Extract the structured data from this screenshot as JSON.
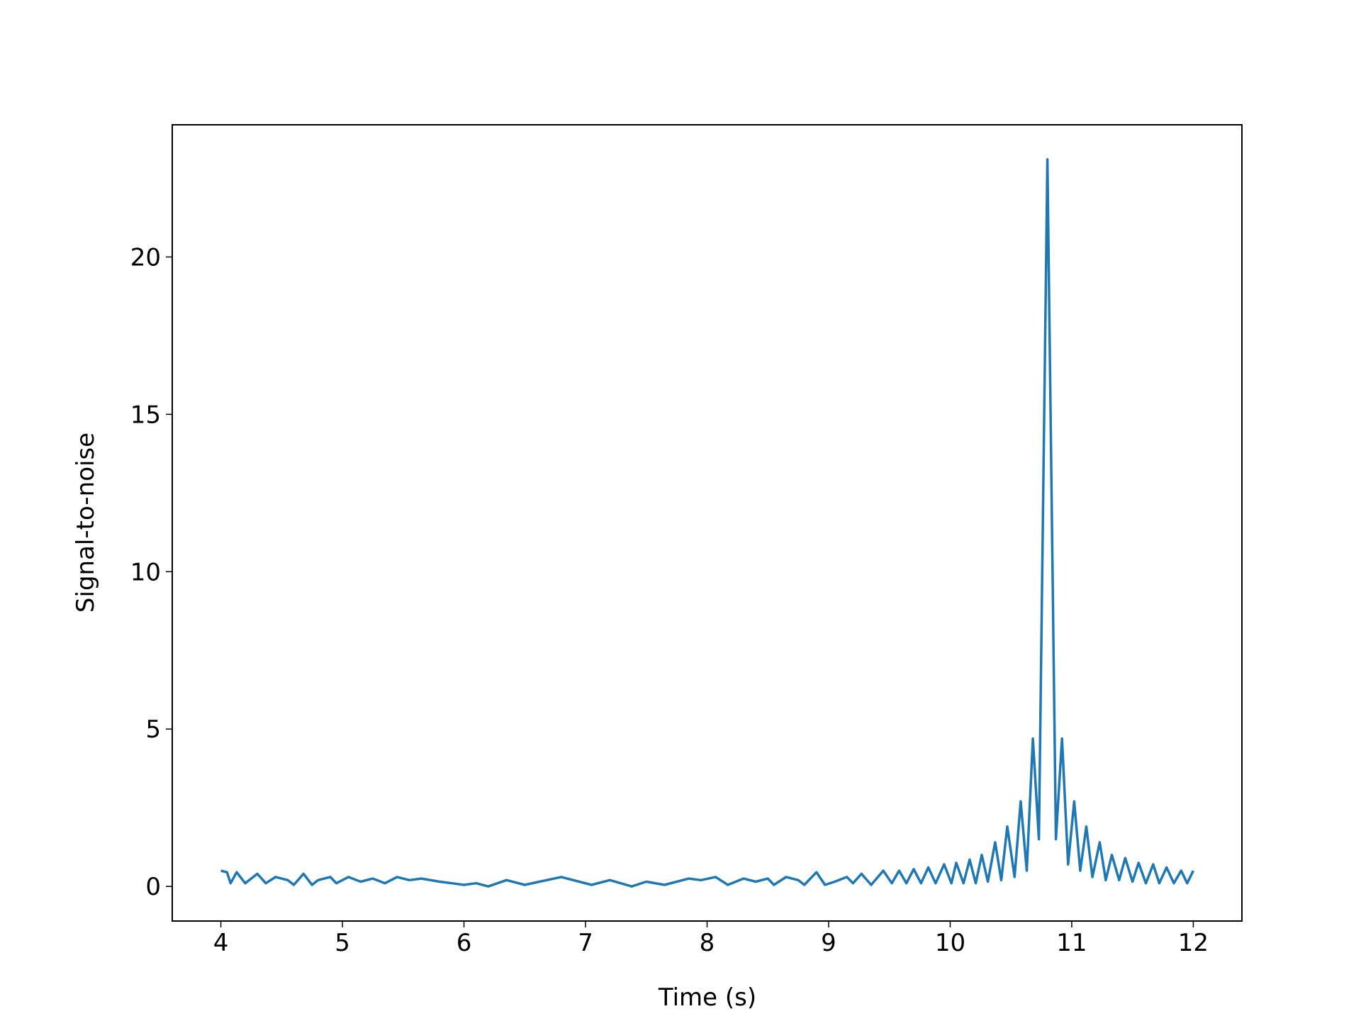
{
  "chart_data": {
    "type": "line",
    "x_label": "Time (s)",
    "y_label": "Signal-to-noise",
    "xlim": [
      3.6,
      12.4
    ],
    "ylim": [
      -1.1,
      24.2
    ],
    "xticks": [
      4,
      5,
      6,
      7,
      8,
      9,
      10,
      11,
      12
    ],
    "yticks": [
      0,
      5,
      10,
      15,
      20
    ],
    "series": [
      {
        "color": "#1f77b4",
        "x": [
          4.0,
          4.05,
          4.08,
          4.13,
          4.2,
          4.3,
          4.37,
          4.45,
          4.55,
          4.6,
          4.68,
          4.75,
          4.8,
          4.9,
          4.95,
          5.05,
          5.15,
          5.25,
          5.35,
          5.45,
          5.55,
          5.65,
          5.8,
          5.9,
          6.0,
          6.1,
          6.2,
          6.35,
          6.5,
          6.8,
          7.05,
          7.2,
          7.38,
          7.5,
          7.65,
          7.85,
          7.95,
          8.07,
          8.17,
          8.3,
          8.4,
          8.5,
          8.55,
          8.65,
          8.75,
          8.8,
          8.9,
          8.97,
          9.05,
          9.15,
          9.2,
          9.27,
          9.35,
          9.45,
          9.52,
          9.58,
          9.64,
          9.7,
          9.76,
          9.82,
          9.88,
          9.95,
          10.01,
          10.05,
          10.11,
          10.16,
          10.21,
          10.26,
          10.31,
          10.37,
          10.42,
          10.47,
          10.53,
          10.58,
          10.63,
          10.68,
          10.73,
          10.8,
          10.87,
          10.92,
          10.97,
          11.02,
          11.07,
          11.12,
          11.17,
          11.23,
          11.28,
          11.33,
          11.39,
          11.44,
          11.5,
          11.55,
          11.61,
          11.67,
          11.72,
          11.78,
          11.84,
          11.9,
          11.95,
          12.0
        ],
        "values": [
          0.5,
          0.45,
          0.1,
          0.45,
          0.1,
          0.4,
          0.1,
          0.3,
          0.2,
          0.05,
          0.4,
          0.05,
          0.2,
          0.3,
          0.1,
          0.3,
          0.15,
          0.25,
          0.1,
          0.3,
          0.2,
          0.25,
          0.15,
          0.1,
          0.05,
          0.1,
          0.0,
          0.2,
          0.05,
          0.3,
          0.05,
          0.2,
          0.0,
          0.15,
          0.05,
          0.25,
          0.2,
          0.3,
          0.05,
          0.25,
          0.15,
          0.25,
          0.05,
          0.3,
          0.2,
          0.05,
          0.45,
          0.05,
          0.15,
          0.3,
          0.1,
          0.4,
          0.05,
          0.5,
          0.1,
          0.5,
          0.1,
          0.55,
          0.1,
          0.6,
          0.1,
          0.7,
          0.1,
          0.75,
          0.1,
          0.85,
          0.1,
          1.0,
          0.15,
          1.4,
          0.2,
          1.9,
          0.3,
          2.7,
          0.5,
          4.7,
          1.5,
          23.1,
          1.5,
          4.7,
          0.7,
          2.7,
          0.5,
          1.9,
          0.3,
          1.4,
          0.2,
          1.0,
          0.2,
          0.9,
          0.15,
          0.75,
          0.1,
          0.7,
          0.1,
          0.6,
          0.1,
          0.5,
          0.1,
          0.5
        ]
      }
    ]
  }
}
